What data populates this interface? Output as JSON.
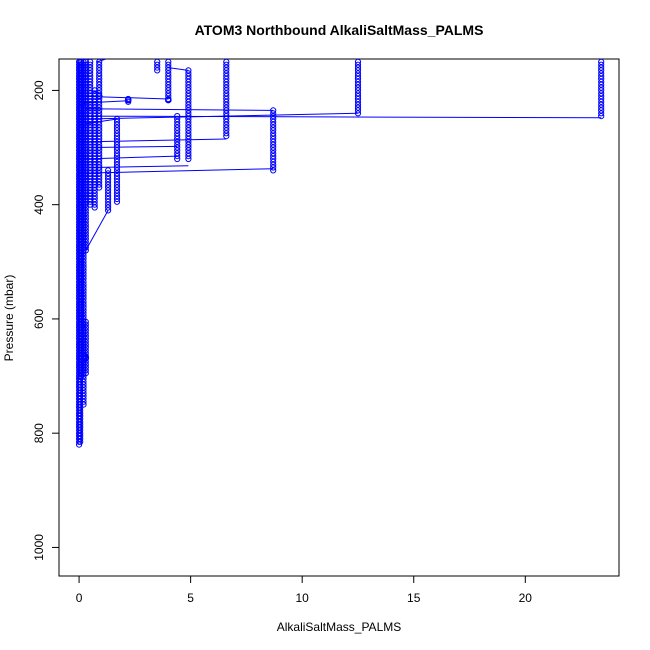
{
  "chart_data": {
    "type": "scatter",
    "title": "ATOM3 Northbound AlkaliSaltMass_PALMS",
    "xlabel": "AlkaliSaltMass_PALMS",
    "ylabel": "Pressure (mbar)",
    "xlim": [
      -0.9,
      24.2
    ],
    "ylim": [
      1050,
      145
    ],
    "y_inverted": true,
    "grid": false,
    "x_ticks": [
      0,
      5,
      10,
      15,
      20
    ],
    "y_ticks": [
      200,
      400,
      600,
      800,
      1000
    ],
    "marker": "open-circle",
    "color": "#0000ff",
    "columns": [
      {
        "x": 0.0,
        "p_from": 150,
        "p_to": 820
      },
      {
        "x": 0.05,
        "p_from": 150,
        "p_to": 815
      },
      {
        "x": 0.1,
        "p_from": 150,
        "p_to": 700
      },
      {
        "x": 0.2,
        "p_from": 150,
        "p_to": 750
      },
      {
        "x": 0.3,
        "p_from": 150,
        "p_to": 480
      },
      {
        "x": 0.3,
        "p_from": 605,
        "p_to": 695
      },
      {
        "x": 0.5,
        "p_from": 150,
        "p_to": 400
      },
      {
        "x": 0.7,
        "p_from": 200,
        "p_to": 405
      },
      {
        "x": 0.9,
        "p_from": 150,
        "p_to": 370
      },
      {
        "x": 1.3,
        "p_from": 340,
        "p_to": 410
      },
      {
        "x": 1.7,
        "p_from": 250,
        "p_to": 395
      },
      {
        "x": 2.2,
        "p_from": 215,
        "p_to": 220
      },
      {
        "x": 3.5,
        "p_from": 150,
        "p_to": 165
      },
      {
        "x": 4.0,
        "p_from": 150,
        "p_to": 215
      },
      {
        "x": 4.4,
        "p_from": 245,
        "p_to": 320
      },
      {
        "x": 4.9,
        "p_from": 165,
        "p_to": 320
      },
      {
        "x": 6.6,
        "p_from": 150,
        "p_to": 280
      },
      {
        "x": 8.7,
        "p_from": 235,
        "p_to": 340
      },
      {
        "x": 12.5,
        "p_from": 150,
        "p_to": 240
      },
      {
        "x": 23.4,
        "p_from": 150,
        "p_to": 245
      }
    ],
    "extra_points": [
      {
        "x": 0.25,
        "y": 665
      },
      {
        "x": 0.3,
        "y": 668
      },
      {
        "x": 2.2,
        "y": 217
      },
      {
        "x": 4.0,
        "y": 217
      },
      {
        "x": 0.9,
        "y": 210
      }
    ],
    "segments": [
      [
        [
          0.0,
          245
        ],
        [
          23.4,
          248
        ]
      ],
      [
        [
          0.4,
          250
        ],
        [
          12.5,
          240
        ]
      ],
      [
        [
          0.0,
          345
        ],
        [
          8.7,
          337
        ]
      ],
      [
        [
          0.6,
          335
        ],
        [
          4.9,
          332
        ]
      ],
      [
        [
          0.2,
          320
        ],
        [
          4.4,
          315
        ]
      ],
      [
        [
          0.5,
          290
        ],
        [
          6.6,
          285
        ]
      ],
      [
        [
          0.3,
          232
        ],
        [
          8.7,
          235
        ]
      ],
      [
        [
          0.2,
          222
        ],
        [
          2.2,
          218
        ]
      ],
      [
        [
          0.0,
          210
        ],
        [
          4.0,
          215
        ]
      ],
      [
        [
          0.5,
          200
        ],
        [
          1.0,
          205
        ]
      ],
      [
        [
          0.8,
          150
        ],
        [
          1.2,
          145
        ]
      ],
      [
        [
          4.0,
          160
        ],
        [
          4.9,
          165
        ]
      ],
      [
        [
          0.3,
          480
        ],
        [
          1.3,
          410
        ]
      ],
      [
        [
          0.0,
          260
        ],
        [
          1.7,
          250
        ]
      ],
      [
        [
          0.6,
          300
        ],
        [
          4.4,
          298
        ]
      ],
      [
        [
          0.1,
          620
        ],
        [
          0.3,
          610
        ]
      ]
    ]
  }
}
